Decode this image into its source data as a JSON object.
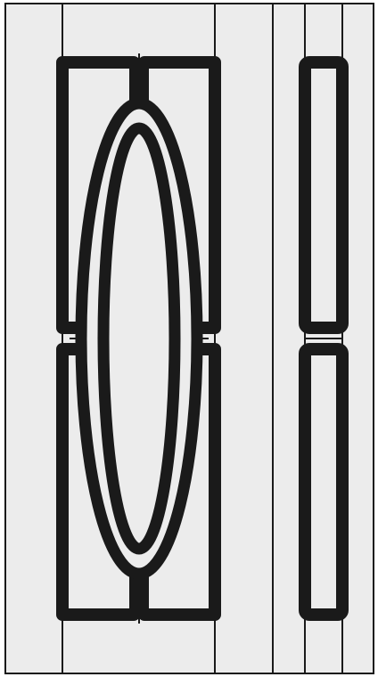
{
  "drawing": {
    "colors": {
      "background": "#ffffff",
      "panel_fill": "#ececec",
      "stroke": "#1a1a1a"
    },
    "door": {
      "panels": 2,
      "center_glass": "oval",
      "glass_rings": 2
    },
    "sidelight": {
      "panels": 2,
      "glass": "rectangles"
    }
  }
}
